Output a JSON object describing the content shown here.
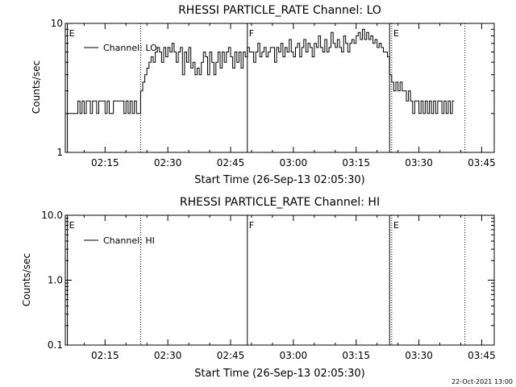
{
  "chart_data": [
    {
      "type": "line",
      "title": "RHESSI PARTICLE_RATE Channel: LO",
      "xlabel": "Start Time (26-Sep-13 02:05:30)",
      "ylabel": "Counts/sec",
      "y_scale": "log",
      "ylim": [
        1,
        10
      ],
      "y_ticks": [
        "1",
        "10"
      ],
      "x_ticks": [
        "02:15",
        "02:30",
        "02:45",
        "03:00",
        "03:15",
        "03:30",
        "03:45"
      ],
      "x_tick_minutes": [
        15,
        30,
        45,
        60,
        75,
        90,
        105
      ],
      "xlim_minutes": [
        5.5,
        108
      ],
      "legend": {
        "position": "top-left",
        "entries": [
          "Channel: LO"
        ]
      },
      "markers": [
        {
          "minute": 6,
          "label": "E",
          "style": "solid"
        },
        {
          "minute": 23.5,
          "label": "",
          "style": "dotted"
        },
        {
          "minute": 49,
          "label": "F",
          "style": "solid"
        },
        {
          "minute": 83,
          "label": "",
          "style": "solid"
        },
        {
          "minute": 83.5,
          "label": "E",
          "style": "dotted"
        },
        {
          "minute": 101,
          "label": "",
          "style": "dotted"
        }
      ],
      "series": [
        {
          "name": "Channel: LO",
          "x_minutes": [
            6,
            8,
            8.5,
            9,
            9.5,
            10,
            10.5,
            11,
            11.5,
            12,
            12.5,
            13,
            13.5,
            14,
            14.5,
            15,
            15.5,
            16,
            16.5,
            17,
            17.5,
            18,
            18.5,
            19,
            19.5,
            20,
            20.5,
            21,
            21.5,
            22,
            22.5,
            23,
            23.5,
            24,
            24.5,
            25,
            25.5,
            26,
            26.5,
            27,
            27.5,
            28,
            28.5,
            29,
            29.5,
            30,
            30.5,
            31,
            31.5,
            32,
            32.5,
            33,
            33.5,
            34,
            34.5,
            35,
            35.5,
            36,
            36.5,
            37,
            37.5,
            38,
            38.5,
            39,
            39.5,
            40,
            40.5,
            41,
            41.5,
            42,
            42.5,
            43,
            43.5,
            44,
            44.5,
            45,
            45.5,
            46,
            46.5,
            47,
            47.5,
            48,
            48.5,
            49,
            49.5,
            50,
            50.5,
            51,
            51.5,
            52,
            52.5,
            53,
            53.5,
            54,
            54.5,
            55,
            55.5,
            56,
            56.5,
            57,
            57.5,
            58,
            58.5,
            59,
            59.5,
            60,
            60.5,
            61,
            61.5,
            62,
            62.5,
            63,
            63.5,
            64,
            64.5,
            65,
            65.5,
            66,
            66.5,
            67,
            67.5,
            68,
            68.5,
            69,
            69.5,
            70,
            70.5,
            71,
            71.5,
            72,
            72.5,
            73,
            73.5,
            74,
            74.5,
            75,
            75.5,
            76,
            76.5,
            77,
            77.5,
            78,
            78.5,
            79,
            79.5,
            80,
            80.5,
            81,
            81.5,
            82,
            82.5,
            83,
            83.5,
            84,
            84.5,
            85,
            85.5,
            86,
            86.5,
            87,
            87.5,
            88,
            88.5,
            89,
            89.5,
            90,
            90.5,
            91,
            91.5,
            92,
            92.5,
            93,
            93.5,
            94,
            94.5,
            95,
            95.5,
            96,
            96.5,
            97,
            97.5,
            98
          ],
          "values": [
            2,
            2,
            2.5,
            2,
            2.5,
            2,
            2.5,
            2.5,
            2,
            2.5,
            2.5,
            2,
            2.5,
            2.5,
            2.5,
            2,
            2.5,
            2,
            2,
            2.5,
            2.5,
            2.5,
            2.5,
            2.5,
            2,
            2.5,
            2,
            2.5,
            2,
            2.5,
            2,
            2,
            3,
            3.5,
            4,
            4.5,
            5,
            5.5,
            5,
            6,
            6.5,
            6,
            5,
            6.5,
            5.5,
            6.5,
            6,
            7,
            6,
            5,
            6,
            6.5,
            4,
            6,
            5,
            6.5,
            4.5,
            5,
            4,
            4.5,
            4,
            5,
            6,
            5.5,
            4,
            6,
            5,
            4,
            5,
            6,
            4.5,
            6,
            5,
            6,
            6.5,
            5.5,
            4.5,
            6,
            5,
            6,
            4.5,
            6,
            5.5,
            6.5,
            6,
            6,
            5,
            6,
            7,
            5.5,
            6,
            6.5,
            5.5,
            6,
            6.5,
            6.5,
            5,
            6.5,
            6,
            7,
            5.5,
            6.5,
            6,
            7.5,
            6,
            5.5,
            6.5,
            7,
            5.5,
            6.5,
            7.5,
            6,
            7,
            6.5,
            5.5,
            7,
            6.5,
            8,
            6.5,
            6,
            7.5,
            6,
            6.5,
            8.5,
            7,
            6.5,
            7.5,
            6.5,
            6,
            8,
            7,
            6,
            7,
            7.5,
            7,
            8,
            8.5,
            7.5,
            9,
            7.5,
            8.5,
            7.5,
            8,
            7,
            7.5,
            6.5,
            7,
            6.5,
            6,
            6,
            5.5,
            4,
            3.5,
            3,
            3.5,
            3,
            3.5,
            3,
            3,
            2.5,
            3,
            2.5,
            2,
            2.5,
            2.5,
            2,
            2.5,
            2,
            2.5,
            2,
            2.5,
            2,
            2.5,
            2,
            2.5,
            2.5,
            2,
            2.5,
            2,
            2.5,
            2,
            2.5
          ]
        }
      ]
    },
    {
      "type": "line",
      "title": "RHESSI PARTICLE_RATE Channel: HI",
      "xlabel": "Start Time (26-Sep-13 02:05:30)",
      "ylabel": "Counts/sec",
      "y_scale": "log",
      "ylim": [
        0.1,
        10
      ],
      "y_ticks": [
        "0.1",
        "1.0",
        "10.0"
      ],
      "x_ticks": [
        "02:15",
        "02:30",
        "02:45",
        "03:00",
        "03:15",
        "03:30",
        "03:45"
      ],
      "x_tick_minutes": [
        15,
        30,
        45,
        60,
        75,
        90,
        105
      ],
      "xlim_minutes": [
        5.5,
        108
      ],
      "legend": {
        "position": "top-left",
        "entries": [
          "Channel: HI"
        ]
      },
      "markers": [
        {
          "minute": 6,
          "label": "E",
          "style": "solid"
        },
        {
          "minute": 23.5,
          "label": "",
          "style": "dotted"
        },
        {
          "minute": 49,
          "label": "F",
          "style": "solid"
        },
        {
          "minute": 83,
          "label": "",
          "style": "solid"
        },
        {
          "minute": 83.5,
          "label": "E",
          "style": "dotted"
        },
        {
          "minute": 101,
          "label": "",
          "style": "dotted"
        }
      ],
      "series": [
        {
          "name": "Channel: HI",
          "x_minutes": [],
          "values": []
        }
      ]
    }
  ],
  "footer": {
    "timestamp": "22-Oct-2021 13:00"
  }
}
